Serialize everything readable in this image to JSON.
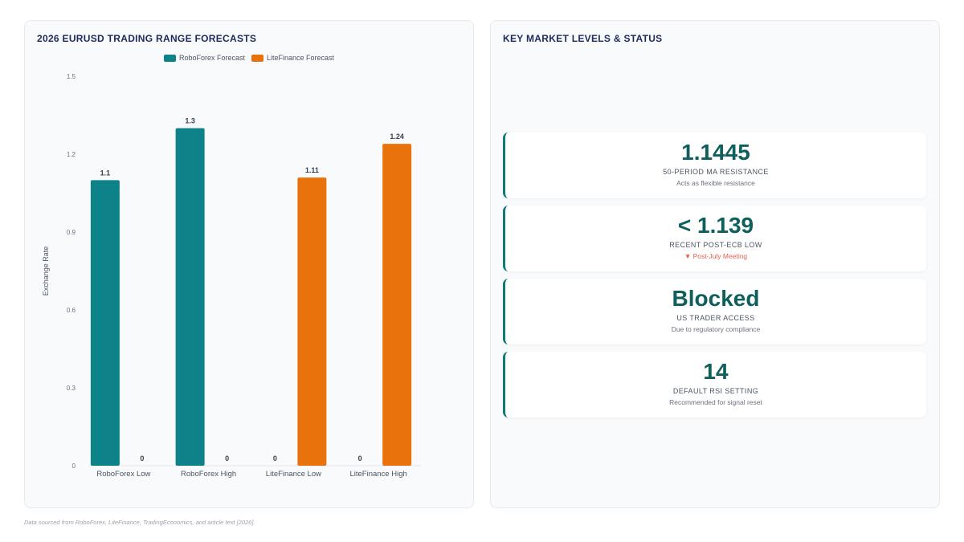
{
  "chart_panel": {
    "title": "2026 EURUSD TRADING RANGE FORECASTS"
  },
  "chart_data": {
    "type": "bar",
    "categories": [
      "RoboForex Low",
      "RoboForex High",
      "LiteFinance Low",
      "LiteFinance High"
    ],
    "series": [
      {
        "name": "RoboForex Forecast",
        "color": "#0e8289",
        "values": [
          1.1,
          1.3,
          0,
          0
        ]
      },
      {
        "name": "LiteFinance Forecast",
        "color": "#e8730c",
        "values": [
          0,
          0,
          1.11,
          1.24
        ]
      }
    ],
    "ylabel": "Exchange Rate",
    "ylim": [
      0,
      1.5
    ],
    "yticks": [
      0,
      0.3,
      0.6,
      0.9,
      1.2,
      1.5
    ],
    "legend_position": "top-center",
    "grid": false,
    "data_labels": true
  },
  "kpi_panel": {
    "title": "KEY MARKET LEVELS & STATUS",
    "cards": [
      {
        "value": "1.1445",
        "label": "50-PERIOD MA RESISTANCE",
        "sub": "Acts as flexible resistance",
        "sub_alert": false
      },
      {
        "value": "< 1.139",
        "label": "RECENT POST-ECB LOW",
        "sub": "▼ Post-July Meeting",
        "sub_alert": true
      },
      {
        "value": "Blocked",
        "label": "US TRADER ACCESS",
        "sub": "Due to regulatory compliance",
        "sub_alert": false
      },
      {
        "value": "14",
        "label": "DEFAULT RSI SETTING",
        "sub": "Recommended for signal reset",
        "sub_alert": false
      }
    ]
  },
  "footnote": "Data sourced from RoboForex, LiteFinance, TradingEconomics, and article text [2026]."
}
